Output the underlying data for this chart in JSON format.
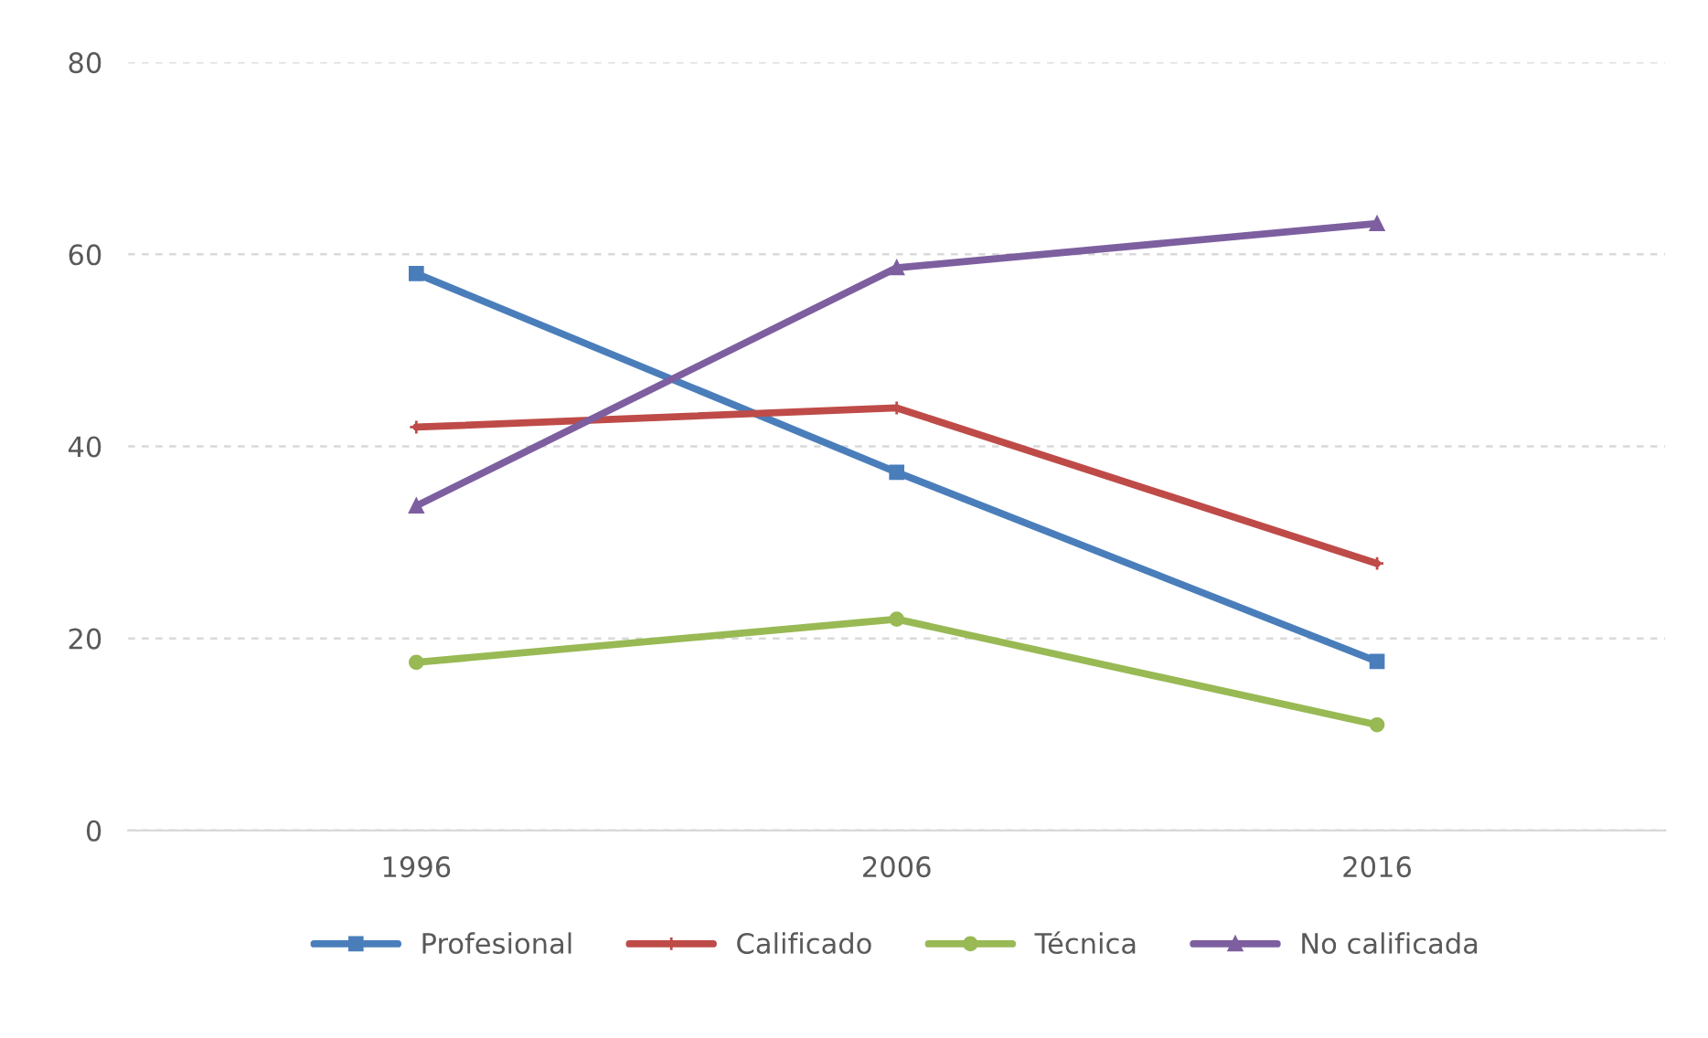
{
  "chart_data": {
    "type": "line",
    "categories": [
      "1996",
      "2006",
      "2016"
    ],
    "series": [
      {
        "name": "Profesional",
        "color": "#4a7ebb",
        "marker": "square",
        "values": [
          58,
          37.3,
          17.6
        ]
      },
      {
        "name": "Calificado",
        "color": "#be4b48",
        "marker": "cross",
        "values": [
          42,
          44,
          27.8
        ]
      },
      {
        "name": "Técnica",
        "color": "#98b954",
        "marker": "circle",
        "values": [
          17.5,
          22,
          11
        ]
      },
      {
        "name": "No calificada",
        "color": "#7d5fa0",
        "marker": "triangle",
        "values": [
          33.8,
          58.6,
          63.2
        ]
      }
    ],
    "ylim": [
      0,
      80
    ],
    "yticks": [
      0,
      20,
      40,
      60,
      80
    ],
    "grid": "y",
    "legend": "bottom"
  }
}
